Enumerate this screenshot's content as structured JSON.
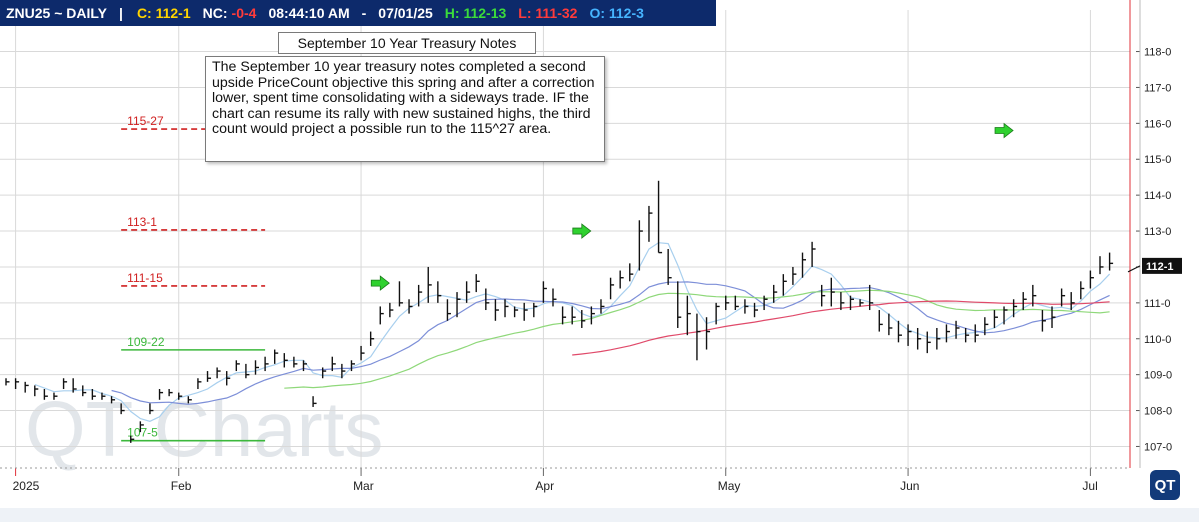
{
  "header": {
    "symbol": "ZNU25 ~ DAILY",
    "separator": "|",
    "close_label": "C: 112-1",
    "net_change_label": "NC:",
    "net_change_value": "-0-4",
    "time": "08:44:10 AM",
    "dash": "-",
    "date": "07/01/25",
    "high": "H: 112-13",
    "low": "L: 111-32",
    "open": "O: 112-3",
    "colors": {
      "background": "#0d2a6b",
      "close": "#ffd400",
      "net_change": "#ff3b3b",
      "high": "#3bdc3b",
      "low": "#ff3b3b",
      "open": "#46b4ff"
    }
  },
  "title_box": "September 10 Year Treasury Notes",
  "note_box": "The September 10 year treasury notes completed a second upside PriceCount objective this spring and after a correction lower, spent time consolidating with a sideways trade. IF the chart can resume its rally with new sustained highs, the third count would project a possible run to the 115^27 area.",
  "watermark": "QT Charts",
  "logo_text": "QT",
  "chart_data": {
    "type": "bar",
    "subtype": "ohlc",
    "y_axis_ticks": [
      "107-0",
      "108-0",
      "109-0",
      "110-0",
      "111-0",
      "112-0",
      "113-0",
      "114-0",
      "115-0",
      "116-0",
      "117-0",
      "118-0"
    ],
    "y_axis_values": [
      107,
      108,
      109,
      110,
      111,
      112,
      113,
      114,
      115,
      116,
      117,
      118
    ],
    "ylim": [
      106.4,
      118.6
    ],
    "x_axis_labels": [
      "2025",
      "Feb",
      "Mar",
      "Apr",
      "May",
      "Jun",
      "Jul"
    ],
    "x_axis_label_positions_bar_index": [
      1,
      18,
      37,
      56,
      75,
      94,
      113
    ],
    "bar_count": 115,
    "current_price_label": "112-1",
    "current_price_value": 112.03,
    "price_colors": {
      "bars": "#111111",
      "price_tag": "#111111",
      "grid": "#d9d9d9",
      "right_border": "#e0303a"
    },
    "levels": [
      {
        "label": "115-27",
        "value": 115.84,
        "style": "dashed",
        "color": "#d02020",
        "bar_start": 12,
        "bar_end": 27
      },
      {
        "label": "113-1",
        "value": 113.03,
        "style": "dashed",
        "color": "#d02020",
        "bar_start": 12,
        "bar_end": 27
      },
      {
        "label": "111-15",
        "value": 111.47,
        "style": "dashed",
        "color": "#d02020",
        "bar_start": 12,
        "bar_end": 27
      },
      {
        "label": "109-22",
        "value": 109.69,
        "style": "solid",
        "color": "#3cb83c",
        "bar_start": 12,
        "bar_end": 27
      },
      {
        "label": "107-5",
        "value": 107.16,
        "style": "solid",
        "color": "#3cb83c",
        "bar_start": 12,
        "bar_end": 27
      }
    ],
    "signal_arrows": [
      {
        "bar_index": 39,
        "value": 111.55,
        "color": "#2fd12f"
      },
      {
        "bar_index": 60,
        "value": 113.0,
        "color": "#2fd12f"
      },
      {
        "bar_index": 104,
        "value": 115.8,
        "color": "#2fd12f"
      }
    ],
    "series": [
      {
        "type": "ohlc",
        "values": [
          [
            108.9,
            108.7,
            108.8
          ],
          [
            108.9,
            108.6,
            108.8
          ],
          [
            108.8,
            108.5,
            108.7
          ],
          [
            108.7,
            108.4,
            108.6
          ],
          [
            108.6,
            108.3,
            108.4
          ],
          [
            108.5,
            108.3,
            108.4
          ],
          [
            108.9,
            108.6,
            108.8
          ],
          [
            108.9,
            108.5,
            108.6
          ],
          [
            108.7,
            108.4,
            108.5
          ],
          [
            108.6,
            108.3,
            108.4
          ],
          [
            108.5,
            108.3,
            108.4
          ],
          [
            108.4,
            108.2,
            108.3
          ],
          [
            108.2,
            107.9,
            108.0
          ],
          [
            107.3,
            107.1,
            107.2
          ],
          [
            107.7,
            107.4,
            107.6
          ],
          [
            108.2,
            107.9,
            108.0
          ],
          [
            108.6,
            108.3,
            108.5
          ],
          [
            108.6,
            108.4,
            108.5
          ],
          [
            108.5,
            108.3,
            108.4
          ],
          [
            108.4,
            108.2,
            108.3
          ],
          [
            108.9,
            108.6,
            108.8
          ],
          [
            109.1,
            108.8,
            108.9
          ],
          [
            109.2,
            108.9,
            109.1
          ],
          [
            109.1,
            108.7,
            108.9
          ],
          [
            109.4,
            109.1,
            109.3
          ],
          [
            109.3,
            108.9,
            109.0
          ],
          [
            109.4,
            109.0,
            109.2
          ],
          [
            109.5,
            109.1,
            109.3
          ],
          [
            109.7,
            109.3,
            109.6
          ],
          [
            109.6,
            109.2,
            109.4
          ],
          [
            109.5,
            109.2,
            109.3
          ],
          [
            109.4,
            109.1,
            109.3
          ],
          [
            108.4,
            108.1,
            108.2
          ],
          [
            109.2,
            108.9,
            109.1
          ],
          [
            109.5,
            109.1,
            109.3
          ],
          [
            109.3,
            108.9,
            109.1
          ],
          [
            109.4,
            109.1,
            109.3
          ],
          [
            109.8,
            109.4,
            109.6
          ],
          [
            110.2,
            109.8,
            110.0
          ],
          [
            110.9,
            110.4,
            110.7
          ],
          [
            111.0,
            110.6,
            110.8
          ],
          [
            111.6,
            110.9,
            111.0
          ],
          [
            111.1,
            110.7,
            110.9
          ],
          [
            111.5,
            110.9,
            111.3
          ],
          [
            112.0,
            111.0,
            111.5
          ],
          [
            111.6,
            111.0,
            111.2
          ],
          [
            111.1,
            110.5,
            110.7
          ],
          [
            111.3,
            110.6,
            111.1
          ],
          [
            111.6,
            111.0,
            111.3
          ],
          [
            111.8,
            111.3,
            111.6
          ],
          [
            111.4,
            110.8,
            111.0
          ],
          [
            111.1,
            110.5,
            110.8
          ],
          [
            111.1,
            110.6,
            110.9
          ],
          [
            110.9,
            110.6,
            110.8
          ],
          [
            111.0,
            110.5,
            110.8
          ],
          [
            111.0,
            110.6,
            110.9
          ],
          [
            111.6,
            111.0,
            111.4
          ],
          [
            111.4,
            110.9,
            111.1
          ],
          [
            110.9,
            110.4,
            110.6
          ],
          [
            110.9,
            110.4,
            110.6
          ],
          [
            110.8,
            110.3,
            110.5
          ],
          [
            110.9,
            110.4,
            110.7
          ],
          [
            111.1,
            110.7,
            110.9
          ],
          [
            111.7,
            111.1,
            111.5
          ],
          [
            111.9,
            111.4,
            111.7
          ],
          [
            112.1,
            111.6,
            111.8
          ],
          [
            113.3,
            111.9,
            113.0
          ],
          [
            113.7,
            112.7,
            113.5
          ],
          [
            114.4,
            112.4,
            112.4
          ],
          [
            112.5,
            111.5,
            111.7
          ],
          [
            111.6,
            110.3,
            110.6
          ],
          [
            111.2,
            110.1,
            110.7
          ],
          [
            110.7,
            109.4,
            110.2
          ],
          [
            110.6,
            109.7,
            110.2
          ],
          [
            111.0,
            110.4,
            110.9
          ],
          [
            111.2,
            110.8,
            111.0
          ],
          [
            111.2,
            110.8,
            110.9
          ],
          [
            111.1,
            110.7,
            110.9
          ],
          [
            111.0,
            110.6,
            110.8
          ],
          [
            111.2,
            110.8,
            111.1
          ],
          [
            111.5,
            111.0,
            111.3
          ],
          [
            111.8,
            111.2,
            111.6
          ],
          [
            112.0,
            111.5,
            111.8
          ],
          [
            112.4,
            111.7,
            112.2
          ],
          [
            112.7,
            112.0,
            112.5
          ],
          [
            111.5,
            110.9,
            111.2
          ],
          [
            111.7,
            110.9,
            111.3
          ],
          [
            111.3,
            110.8,
            111.0
          ],
          [
            111.2,
            110.8,
            111.1
          ],
          [
            111.1,
            110.9,
            111.0
          ],
          [
            111.5,
            110.8,
            111.0
          ],
          [
            110.8,
            110.2,
            110.4
          ],
          [
            110.7,
            110.1,
            110.3
          ],
          [
            110.5,
            109.9,
            110.1
          ],
          [
            110.4,
            109.8,
            110.2
          ],
          [
            110.3,
            109.7,
            110.0
          ],
          [
            110.2,
            109.6,
            109.9
          ],
          [
            110.3,
            109.7,
            110.0
          ],
          [
            110.4,
            109.9,
            110.2
          ],
          [
            110.5,
            110.0,
            110.3
          ],
          [
            110.3,
            109.9,
            110.1
          ],
          [
            110.4,
            109.9,
            110.1
          ],
          [
            110.6,
            110.1,
            110.4
          ],
          [
            110.8,
            110.3,
            110.6
          ],
          [
            110.9,
            110.4,
            110.8
          ],
          [
            111.1,
            110.6,
            110.9
          ],
          [
            111.3,
            110.8,
            111.1
          ],
          [
            111.5,
            110.9,
            111.2
          ],
          [
            110.8,
            110.2,
            110.5
          ],
          [
            110.9,
            110.3,
            110.6
          ],
          [
            111.4,
            110.9,
            111.2
          ],
          [
            111.3,
            110.8,
            111.0
          ],
          [
            111.6,
            111.1,
            111.4
          ],
          [
            111.9,
            111.4,
            111.7
          ],
          [
            112.3,
            111.8,
            112.0
          ],
          [
            112.4,
            111.9,
            112.1
          ]
        ]
      },
      {
        "name": "",
        "type": "line",
        "color": "#a8cfee",
        "role": "short moving average"
      },
      {
        "name": "",
        "type": "line",
        "color": "#7d8fd8",
        "role": "medium moving average"
      },
      {
        "name": "",
        "type": "line",
        "color": "#8fd87a",
        "role": "long moving average"
      },
      {
        "name": "",
        "type": "line",
        "color": "#e04a6a",
        "role": "longest moving average"
      }
    ]
  }
}
